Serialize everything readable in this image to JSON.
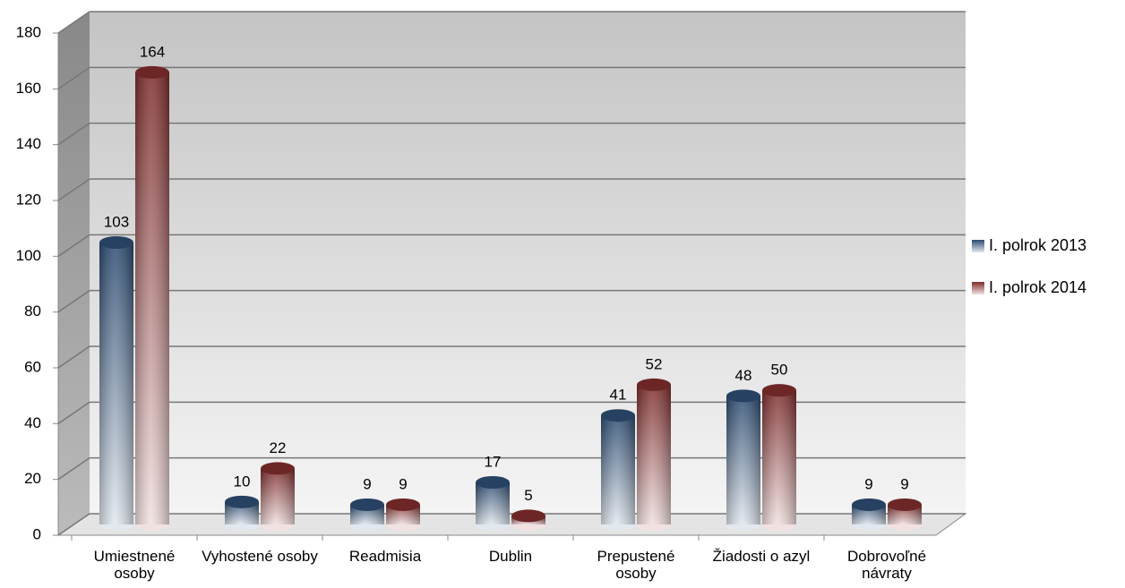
{
  "chart_data": {
    "type": "bar",
    "categories": [
      "Umiestnené osoby",
      "Vyhostené osoby",
      "Readmisia",
      "Dublin",
      "Prepustené osoby",
      "Žiadosti o azyl",
      "Dobrovoľné návraty"
    ],
    "series": [
      {
        "name": "I. polrok 2013",
        "color": "#3b6496",
        "values": [
          103,
          10,
          9,
          17,
          41,
          48,
          9
        ]
      },
      {
        "name": "I. polrok 2014",
        "color": "#a83a3a",
        "values": [
          164,
          22,
          9,
          5,
          52,
          50,
          9
        ]
      }
    ],
    "ylim": [
      0,
      180
    ],
    "yticks": [
      0,
      20,
      40,
      60,
      80,
      100,
      120,
      140,
      160,
      180
    ],
    "grid": true,
    "legend": "right"
  }
}
